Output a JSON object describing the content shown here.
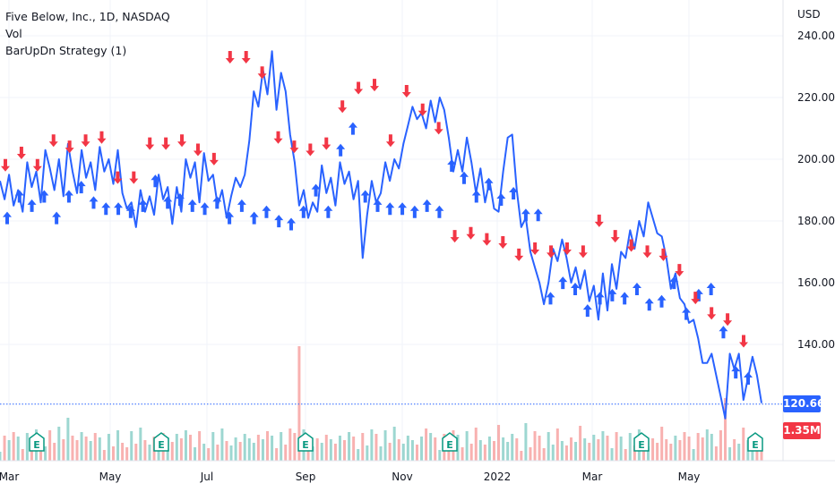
{
  "legend": {
    "title": "Five Below, Inc., 1D, NASDAQ",
    "indicator1": "Vol",
    "indicator2": "BarUpDn Strategy (1)"
  },
  "axis": {
    "currency": "USD",
    "last_price": "120.66",
    "last_volume": "1.35M",
    "earnings_marker": "E"
  },
  "colors": {
    "line": "#2962ff",
    "up_signal": "#2962ff",
    "down_signal": "#f23645",
    "vol_up": "#26a69a",
    "vol_down": "#ef5350",
    "price_tag": "#2962ff",
    "volume_tag": "#f23645",
    "earnings": "#089981"
  },
  "chart_data": {
    "type": "line",
    "ylim": [
      110,
      245
    ],
    "yticks": [
      "240.00",
      "220.00",
      "200.00",
      "180.00",
      "160.00",
      "140.00"
    ],
    "xtick_labels": [
      "Mar",
      "May",
      "Jul",
      "Sep",
      "Nov",
      "2022",
      "Mar",
      "May"
    ],
    "series": [
      {
        "values": [
          193,
          187,
          195,
          185,
          190,
          183,
          199,
          191,
          196,
          186,
          203,
          197,
          190,
          200,
          188,
          205,
          196,
          189,
          203,
          194,
          199,
          190,
          204,
          196,
          200,
          192,
          203,
          189,
          184,
          186,
          178,
          190,
          183,
          188,
          182,
          195,
          187,
          191,
          179,
          191,
          183,
          200,
          194,
          199,
          186,
          202,
          193,
          195,
          185,
          190,
          181,
          188,
          194,
          191,
          195,
          206,
          222,
          217,
          229,
          221,
          235,
          216,
          228,
          222,
          208,
          199,
          185,
          190,
          181,
          186,
          183,
          198,
          189,
          194,
          185,
          199,
          192,
          196,
          187,
          193,
          168,
          182,
          193,
          186,
          189,
          199,
          193,
          200,
          197,
          205,
          211,
          217,
          213,
          215,
          210,
          219,
          212,
          220,
          216,
          207,
          196,
          203,
          196,
          207,
          199,
          189,
          197,
          186,
          193,
          184,
          183,
          196,
          207,
          208,
          190,
          178,
          181,
          170,
          165,
          160,
          153,
          160,
          171,
          167,
          174,
          168,
          160,
          165,
          158,
          164,
          154,
          159,
          148,
          163,
          151,
          166,
          158,
          170,
          168,
          177,
          171,
          180,
          175,
          186,
          181,
          176,
          175,
          168,
          158,
          163,
          155,
          153,
          147,
          148,
          142,
          134,
          134,
          137,
          130,
          123,
          116,
          137,
          132,
          137,
          122,
          129,
          136,
          130,
          121
        ]
      }
    ],
    "up_signals": [
      183,
      190,
      187,
      190,
      183,
      190,
      193,
      188,
      186,
      186,
      185,
      187,
      195,
      188,
      189,
      187,
      186,
      188,
      183,
      187,
      183,
      185,
      182,
      181,
      185,
      192,
      185,
      205,
      212,
      190,
      187,
      186,
      186,
      185,
      187,
      185,
      200,
      196,
      190,
      194,
      189,
      191,
      184,
      184,
      157,
      162,
      160,
      153,
      157,
      158,
      157,
      160,
      155,
      156,
      162,
      152,
      158,
      160,
      146,
      133,
      131
    ],
    "down_signals": [
      196,
      200,
      196,
      204,
      202,
      204,
      205,
      192,
      192,
      203,
      203,
      204,
      201,
      198,
      231,
      231,
      226,
      205,
      202,
      201,
      203,
      215,
      221,
      222,
      204,
      220,
      214,
      208,
      173,
      174,
      172,
      171,
      167,
      169,
      168,
      169,
      168,
      178,
      173,
      170,
      168,
      167,
      162,
      153,
      148,
      146,
      139
    ]
  }
}
